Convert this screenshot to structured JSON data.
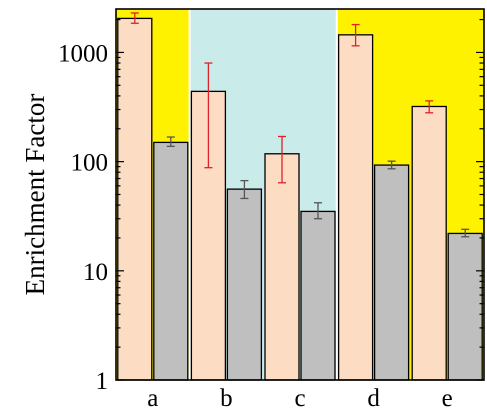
{
  "chart_data": {
    "type": "bar",
    "title": "",
    "xlabel": "",
    "ylabel": "Enrichment Factor",
    "y_scale": "log",
    "ylim": [
      1,
      2500
    ],
    "y_ticks": [
      1,
      10,
      100,
      1000
    ],
    "y_tick_labels": [
      "1",
      "10",
      "100",
      "1000"
    ],
    "categories": [
      "a",
      "b",
      "c",
      "d",
      "e"
    ],
    "series": [
      {
        "color": "#fddcc4",
        "error_bar_color": "#e0202a",
        "values": [
          2050,
          440,
          118,
          1450,
          320
        ],
        "err_low": [
          1850,
          88,
          64,
          1150,
          280
        ],
        "err_high": [
          2300,
          800,
          170,
          1800,
          360
        ]
      },
      {
        "color": "#bfbfbf",
        "error_bar_color": "#555555",
        "values": [
          150,
          56,
          35,
          93,
          22
        ],
        "err_low": [
          138,
          46,
          30,
          86,
          20.5
        ],
        "err_high": [
          168,
          67,
          42,
          101,
          24
        ]
      }
    ],
    "backgrounds": [
      {
        "categories": [
          "a"
        ],
        "color": "#fff200"
      },
      {
        "categories": [
          "b",
          "c"
        ],
        "color": "#c9ecea"
      },
      {
        "categories": [
          "d",
          "e"
        ],
        "color": "#fff200"
      }
    ],
    "grid": false,
    "legend": "none"
  }
}
